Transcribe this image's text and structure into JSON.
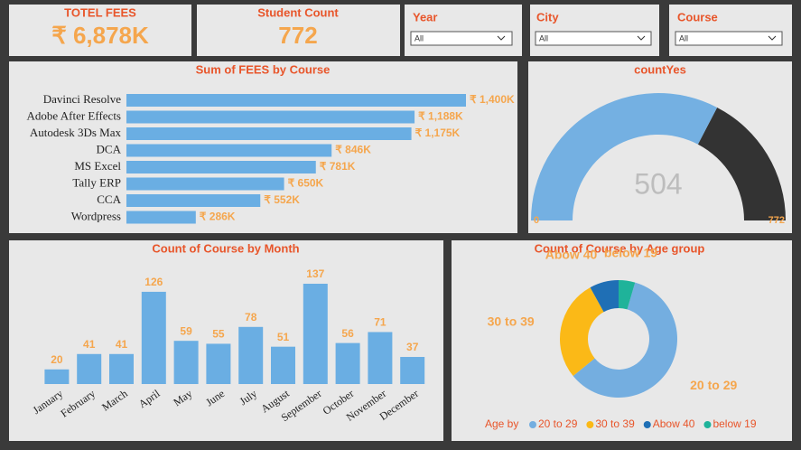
{
  "kpis": [
    {
      "label": "TOTEL FEES",
      "value": "₹ 6,878K"
    },
    {
      "label": "Student Count",
      "value": "772"
    }
  ],
  "slicers": [
    {
      "label": "Year",
      "selected": "All"
    },
    {
      "label": "City",
      "selected": "All"
    },
    {
      "label": "Course",
      "selected": "All"
    }
  ],
  "chart_data": [
    {
      "type": "hbar",
      "title": "Sum of FEES by Course",
      "categories": [
        "Davinci Resolve",
        "Adobe After Effects",
        "Autodesk 3Ds Max",
        "DCA",
        "MS Excel",
        "Tally ERP",
        "CCA",
        "Wordpress"
      ],
      "values": [
        1400,
        1188,
        1175,
        846,
        781,
        650,
        552,
        286
      ],
      "value_labels": [
        "₹ 1,400K",
        "₹ 1,188K",
        "₹ 1,175K",
        "₹ 846K",
        "₹ 781K",
        "₹ 650K",
        "₹ 552K",
        "₹ 286K"
      ],
      "color": "#6aaee3"
    },
    {
      "type": "gauge",
      "title": "countYes",
      "value": 504,
      "min": 0,
      "max": 772,
      "color": "#74b0e2",
      "track_color": "#333333"
    },
    {
      "type": "bar",
      "title": "Count of Course by Month",
      "categories": [
        "January",
        "February",
        "March",
        "April",
        "May",
        "June",
        "July",
        "August",
        "September",
        "October",
        "November",
        "December"
      ],
      "values": [
        20,
        41,
        41,
        126,
        59,
        55,
        78,
        51,
        137,
        56,
        71,
        37
      ],
      "color": "#6aaee3"
    },
    {
      "type": "donut",
      "title": "Count of Course by Age group",
      "legend_title": "Age by",
      "categories": [
        "20 to 29",
        "30 to 39",
        "Abow 40",
        "below 19"
      ],
      "values": [
        460,
        215,
        62,
        35
      ],
      "colors": [
        "#74aee0",
        "#fbb917",
        "#1f6fb5",
        "#1fb39a"
      ]
    }
  ]
}
